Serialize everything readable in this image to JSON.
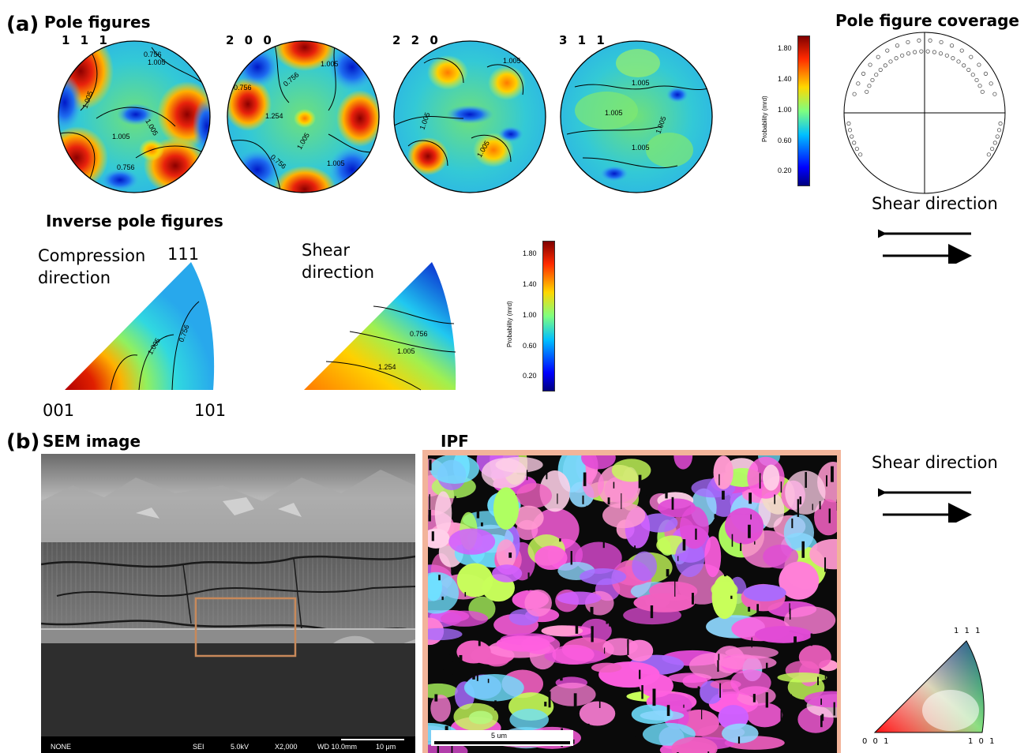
{
  "panel_a": {
    "label": "(a)",
    "pole_figures_title": "Pole figures",
    "pole_figures": [
      {
        "label": "1 1 1",
        "contours": [
          "0.756",
          "1.005",
          "1.005",
          "1.005",
          "1.005",
          "0.756"
        ]
      },
      {
        "label": "2 0 0",
        "contours": [
          "1.005",
          "0.756",
          "0.756",
          "1.254",
          "1.005",
          "0.756",
          "1.005"
        ]
      },
      {
        "label": "2 2 0",
        "contours": [
          "1.005",
          "1.005",
          "1.005"
        ]
      },
      {
        "label": "3 1 1",
        "contours": [
          "1.005",
          "1.005",
          "1.005",
          "1.005"
        ]
      }
    ],
    "colorbar_top": {
      "title": "Probability (mrd)",
      "ticks": [
        "1.80",
        "1.40",
        "1.00",
        "0.60",
        "0.20"
      ]
    },
    "coverage": {
      "title": "Pole figure coverage",
      "shear_label": "Shear direction"
    },
    "ipf_title": "Inverse pole figures",
    "ipf_compression": {
      "label": "Compression\ndirection",
      "corner_top": "111",
      "corner_left": "001",
      "corner_right": "101",
      "contours": [
        "1.005",
        "0.756"
      ]
    },
    "ipf_shear": {
      "label": "Shear\ndirection",
      "contours": [
        "0.756",
        "1.005",
        "1.254"
      ]
    },
    "colorbar_bottom": {
      "title": "Probability (mrd)",
      "ticks": [
        "1.80",
        "1.40",
        "1.00",
        "0.60",
        "0.20"
      ]
    }
  },
  "panel_b": {
    "label": "(b)",
    "sem_title": "SEM image",
    "sem_footer": {
      "mode": "NONE",
      "detector": "SEI",
      "kv": "5.0kV",
      "mag": "X2,000",
      "wd": "WD 10.0mm",
      "scale": "10 μm"
    },
    "ipf_title": "IPF",
    "ipf_scale": "5 um",
    "shear_label": "Shear direction",
    "key": {
      "top": "1 1 1",
      "left": "0 0 1",
      "right": "1 0 1"
    }
  },
  "colors": {
    "ipf_frame": "#f2b49a",
    "sem_box": "#c8895a"
  }
}
